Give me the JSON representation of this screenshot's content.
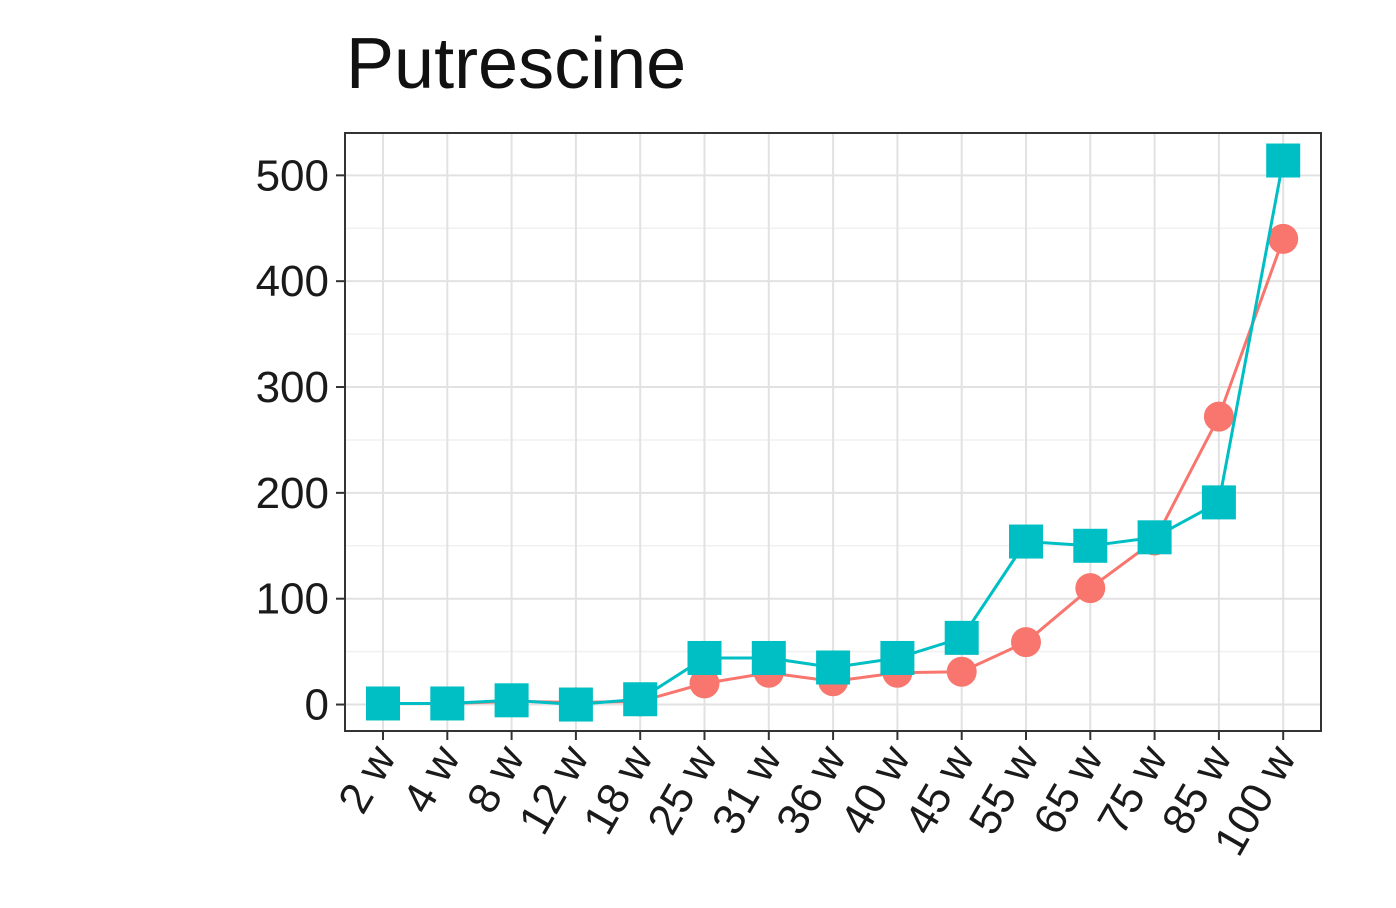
{
  "chart_data": {
    "type": "line",
    "title": "Putrescine",
    "xlabel": "",
    "ylabel": "",
    "categories": [
      "2 w",
      "4 w",
      "8 w",
      "12 w",
      "18 w",
      "25 w",
      "31 w",
      "36 w",
      "40 w",
      "45 w",
      "55 w",
      "65 w",
      "75 w",
      "85 w",
      "100 w"
    ],
    "ylim": [
      -25,
      540
    ],
    "yticks": [
      0,
      100,
      200,
      300,
      400,
      500
    ],
    "grid": true,
    "legend": "none",
    "series": [
      {
        "marker": "circle",
        "color": "#F8766D",
        "values": [
          1,
          1,
          3,
          2,
          3,
          20,
          30,
          22,
          30,
          31,
          59,
          110,
          155,
          272,
          440
        ]
      },
      {
        "marker": "square",
        "color": "#00BFC4",
        "values": [
          1,
          1,
          4,
          0,
          5,
          44,
          44,
          35,
          44,
          63,
          154,
          150,
          158,
          191,
          514
        ]
      }
    ]
  }
}
